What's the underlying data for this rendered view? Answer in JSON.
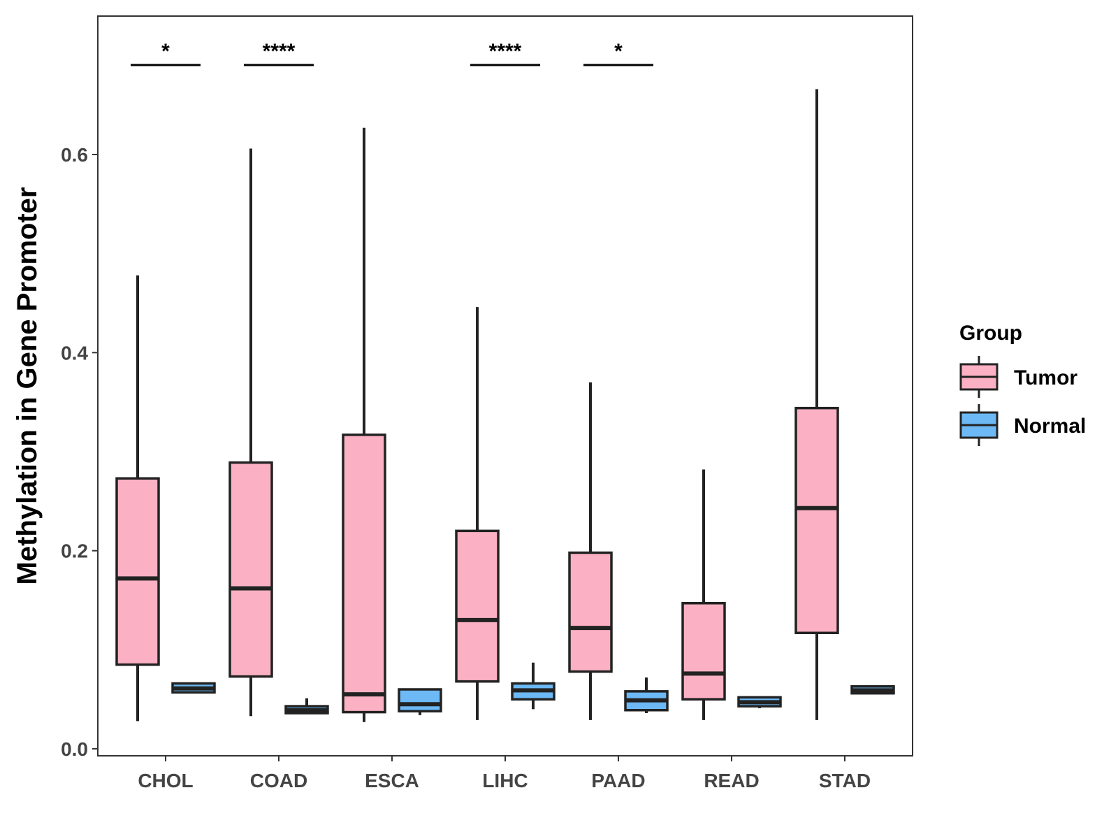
{
  "chart_data": {
    "type": "boxplot",
    "title": "",
    "xlabel": "",
    "ylabel": "Methylation in Gene Promoter",
    "ylim": [
      0.0,
      0.73
    ],
    "yticks": [
      0.0,
      0.2,
      0.4,
      0.6
    ],
    "ytick_labels": [
      "0.0",
      "0.2",
      "0.4",
      "0.6"
    ],
    "categories": [
      "CHOL",
      "COAD",
      "ESCA",
      "LIHC",
      "PAAD",
      "READ",
      "STAD"
    ],
    "legend": {
      "title": "Group",
      "position": "right",
      "entries": [
        {
          "name": "Tumor",
          "color": "#FBB1C3"
        },
        {
          "name": "Normal",
          "color": "#6CB9F5"
        }
      ]
    },
    "series": [
      {
        "name": "Tumor",
        "color": "#FBB1C3",
        "boxes": [
          {
            "category": "CHOL",
            "min": 0.028,
            "q1": 0.085,
            "median": 0.172,
            "q3": 0.273,
            "max": 0.478
          },
          {
            "category": "COAD",
            "min": 0.033,
            "q1": 0.073,
            "median": 0.162,
            "q3": 0.289,
            "max": 0.606
          },
          {
            "category": "ESCA",
            "min": 0.027,
            "q1": 0.037,
            "median": 0.055,
            "q3": 0.317,
            "max": 0.627
          },
          {
            "category": "LIHC",
            "min": 0.029,
            "q1": 0.068,
            "median": 0.13,
            "q3": 0.22,
            "max": 0.446
          },
          {
            "category": "PAAD",
            "min": 0.029,
            "q1": 0.078,
            "median": 0.122,
            "q3": 0.198,
            "max": 0.37
          },
          {
            "category": "READ",
            "min": 0.029,
            "q1": 0.05,
            "median": 0.076,
            "q3": 0.147,
            "max": 0.282
          },
          {
            "category": "STAD",
            "min": 0.029,
            "q1": 0.117,
            "median": 0.243,
            "q3": 0.344,
            "max": 0.666
          }
        ]
      },
      {
        "name": "Normal",
        "color": "#6CB9F5",
        "boxes": [
          {
            "category": "CHOL",
            "min": 0.056,
            "q1": 0.057,
            "median": 0.061,
            "q3": 0.066,
            "max": 0.067
          },
          {
            "category": "COAD",
            "min": 0.035,
            "q1": 0.036,
            "median": 0.039,
            "q3": 0.043,
            "max": 0.051
          },
          {
            "category": "ESCA",
            "min": 0.034,
            "q1": 0.038,
            "median": 0.045,
            "q3": 0.06,
            "max": 0.061
          },
          {
            "category": "LIHC",
            "min": 0.04,
            "q1": 0.05,
            "median": 0.059,
            "q3": 0.066,
            "max": 0.087
          },
          {
            "category": "PAAD",
            "min": 0.036,
            "q1": 0.039,
            "median": 0.049,
            "q3": 0.058,
            "max": 0.072
          },
          {
            "category": "READ",
            "min": 0.041,
            "q1": 0.043,
            "median": 0.047,
            "q3": 0.052,
            "max": 0.052
          },
          {
            "category": "STAD",
            "min": 0.056,
            "q1": 0.056,
            "median": 0.059,
            "q3": 0.063,
            "max": 0.064
          }
        ]
      }
    ],
    "significance": [
      {
        "category": "CHOL",
        "label": "*"
      },
      {
        "category": "COAD",
        "label": "****"
      },
      {
        "category": "LIHC",
        "label": "****"
      },
      {
        "category": "PAAD",
        "label": "*"
      }
    ],
    "grid": false
  }
}
